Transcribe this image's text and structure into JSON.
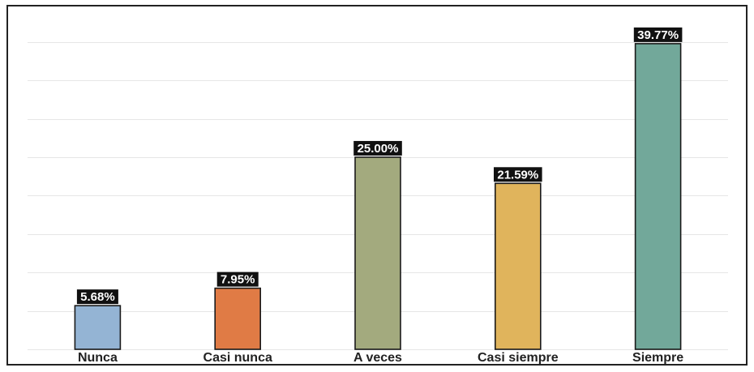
{
  "chart_data": {
    "type": "bar",
    "categories": [
      "Nunca",
      "Casi nunca",
      "A veces",
      "Casi siempre",
      "Siempre"
    ],
    "values": [
      5.68,
      7.95,
      25.0,
      21.59,
      39.77
    ],
    "data_labels": [
      "5.68%",
      "7.95%",
      "25.00%",
      "21.59%",
      "39.77%"
    ],
    "colors": [
      "#94b4d4",
      "#e07b45",
      "#a3aa7e",
      "#e0b45c",
      "#72a89a"
    ],
    "title": "",
    "xlabel": "",
    "ylabel": "",
    "ylim": [
      0,
      42.5
    ],
    "grid": true,
    "legend": "none"
  }
}
